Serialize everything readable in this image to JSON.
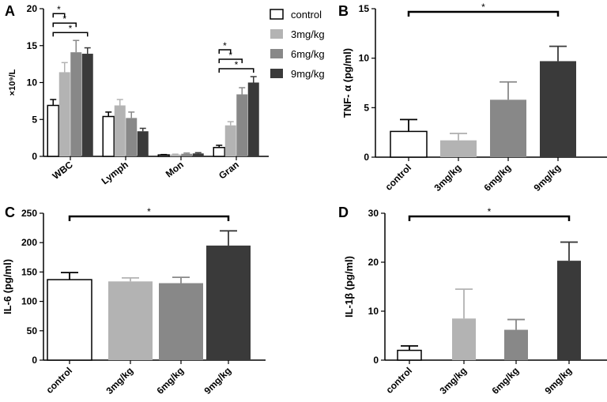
{
  "figure": {
    "colors": {
      "control": "#ffffff",
      "3mg/kg": "#b3b3b3",
      "6mg/kg": "#888888",
      "9mg/kg": "#3a3a3a",
      "axis": "#000000"
    },
    "legend": [
      "control",
      "3mg/kg",
      "6mg/kg",
      "9mg/kg"
    ]
  },
  "chart_data": [
    {
      "panel": "A",
      "type": "bar",
      "title": "",
      "xlabel": "",
      "ylabel": "×10⁹/L",
      "ylim": [
        0,
        20
      ],
      "yticks": [
        0,
        5,
        10,
        15,
        20
      ],
      "categories": [
        "WBC",
        "Lymph",
        "Mon",
        "Gran"
      ],
      "legend_position": "top-right",
      "series": [
        {
          "name": "control",
          "values": [
            6.9,
            5.4,
            0.2,
            1.2
          ],
          "errors": [
            0.8,
            0.6,
            0.05,
            0.3
          ]
        },
        {
          "name": "3mg/kg",
          "values": [
            11.4,
            6.9,
            0.25,
            4.2
          ],
          "errors": [
            1.3,
            0.8,
            0.05,
            0.5
          ]
        },
        {
          "name": "6mg/kg",
          "values": [
            14.1,
            5.2,
            0.35,
            8.4
          ],
          "errors": [
            1.6,
            0.8,
            0.1,
            0.9
          ]
        },
        {
          "name": "9mg/kg",
          "values": [
            13.9,
            3.4,
            0.4,
            10.0
          ],
          "errors": [
            0.8,
            0.4,
            0.1,
            0.8
          ]
        }
      ],
      "significance": [
        {
          "group": "WBC",
          "from": "control",
          "to": "3mg/kg",
          "label": "*"
        },
        {
          "group": "WBC",
          "from": "control",
          "to": "6mg/kg",
          "label": "*"
        },
        {
          "group": "WBC",
          "from": "control",
          "to": "9mg/kg",
          "label": "*"
        },
        {
          "group": "Gran",
          "from": "control",
          "to": "3mg/kg",
          "label": "*"
        },
        {
          "group": "Gran",
          "from": "control",
          "to": "6mg/kg",
          "label": "*"
        },
        {
          "group": "Gran",
          "from": "control",
          "to": "9mg/kg",
          "label": "*"
        }
      ]
    },
    {
      "panel": "B",
      "type": "bar",
      "title": "",
      "xlabel": "",
      "ylabel": "TNF- α (pg/ml)",
      "ylim": [
        0,
        15
      ],
      "yticks": [
        0,
        5,
        10,
        15
      ],
      "categories": [
        "control",
        "3mg/kg",
        "6mg/kg",
        "9mg/kg"
      ],
      "values": [
        2.6,
        1.7,
        5.8,
        9.7
      ],
      "errors": [
        1.2,
        0.7,
        1.8,
        1.5
      ],
      "significance": [
        {
          "from": "control",
          "to": "9mg/kg",
          "label": "*"
        }
      ]
    },
    {
      "panel": "C",
      "type": "bar",
      "title": "",
      "xlabel": "",
      "ylabel": "IL-6 (pg/ml)",
      "ylim": [
        0,
        250
      ],
      "yticks": [
        0,
        50,
        100,
        150,
        200,
        250
      ],
      "categories": [
        "control",
        "3mg/kg",
        "6mg/kg",
        "9mg/kg"
      ],
      "values": [
        137,
        134,
        131,
        195
      ],
      "errors": [
        12,
        6,
        10,
        25
      ],
      "significance": [
        {
          "from": "control",
          "to": "9mg/kg",
          "label": "*"
        }
      ]
    },
    {
      "panel": "D",
      "type": "bar",
      "title": "",
      "xlabel": "",
      "ylabel": "IL-1β (pg/ml)",
      "ylim": [
        0,
        30
      ],
      "yticks": [
        0,
        10,
        20,
        30
      ],
      "categories": [
        "control",
        "3mg/kg",
        "6mg/kg",
        "9mg/kg"
      ],
      "values": [
        2.0,
        8.5,
        6.2,
        20.3
      ],
      "errors": [
        0.9,
        6.0,
        2.1,
        3.8
      ],
      "significance": [
        {
          "from": "control",
          "to": "9mg/kg",
          "label": "*"
        }
      ]
    }
  ]
}
